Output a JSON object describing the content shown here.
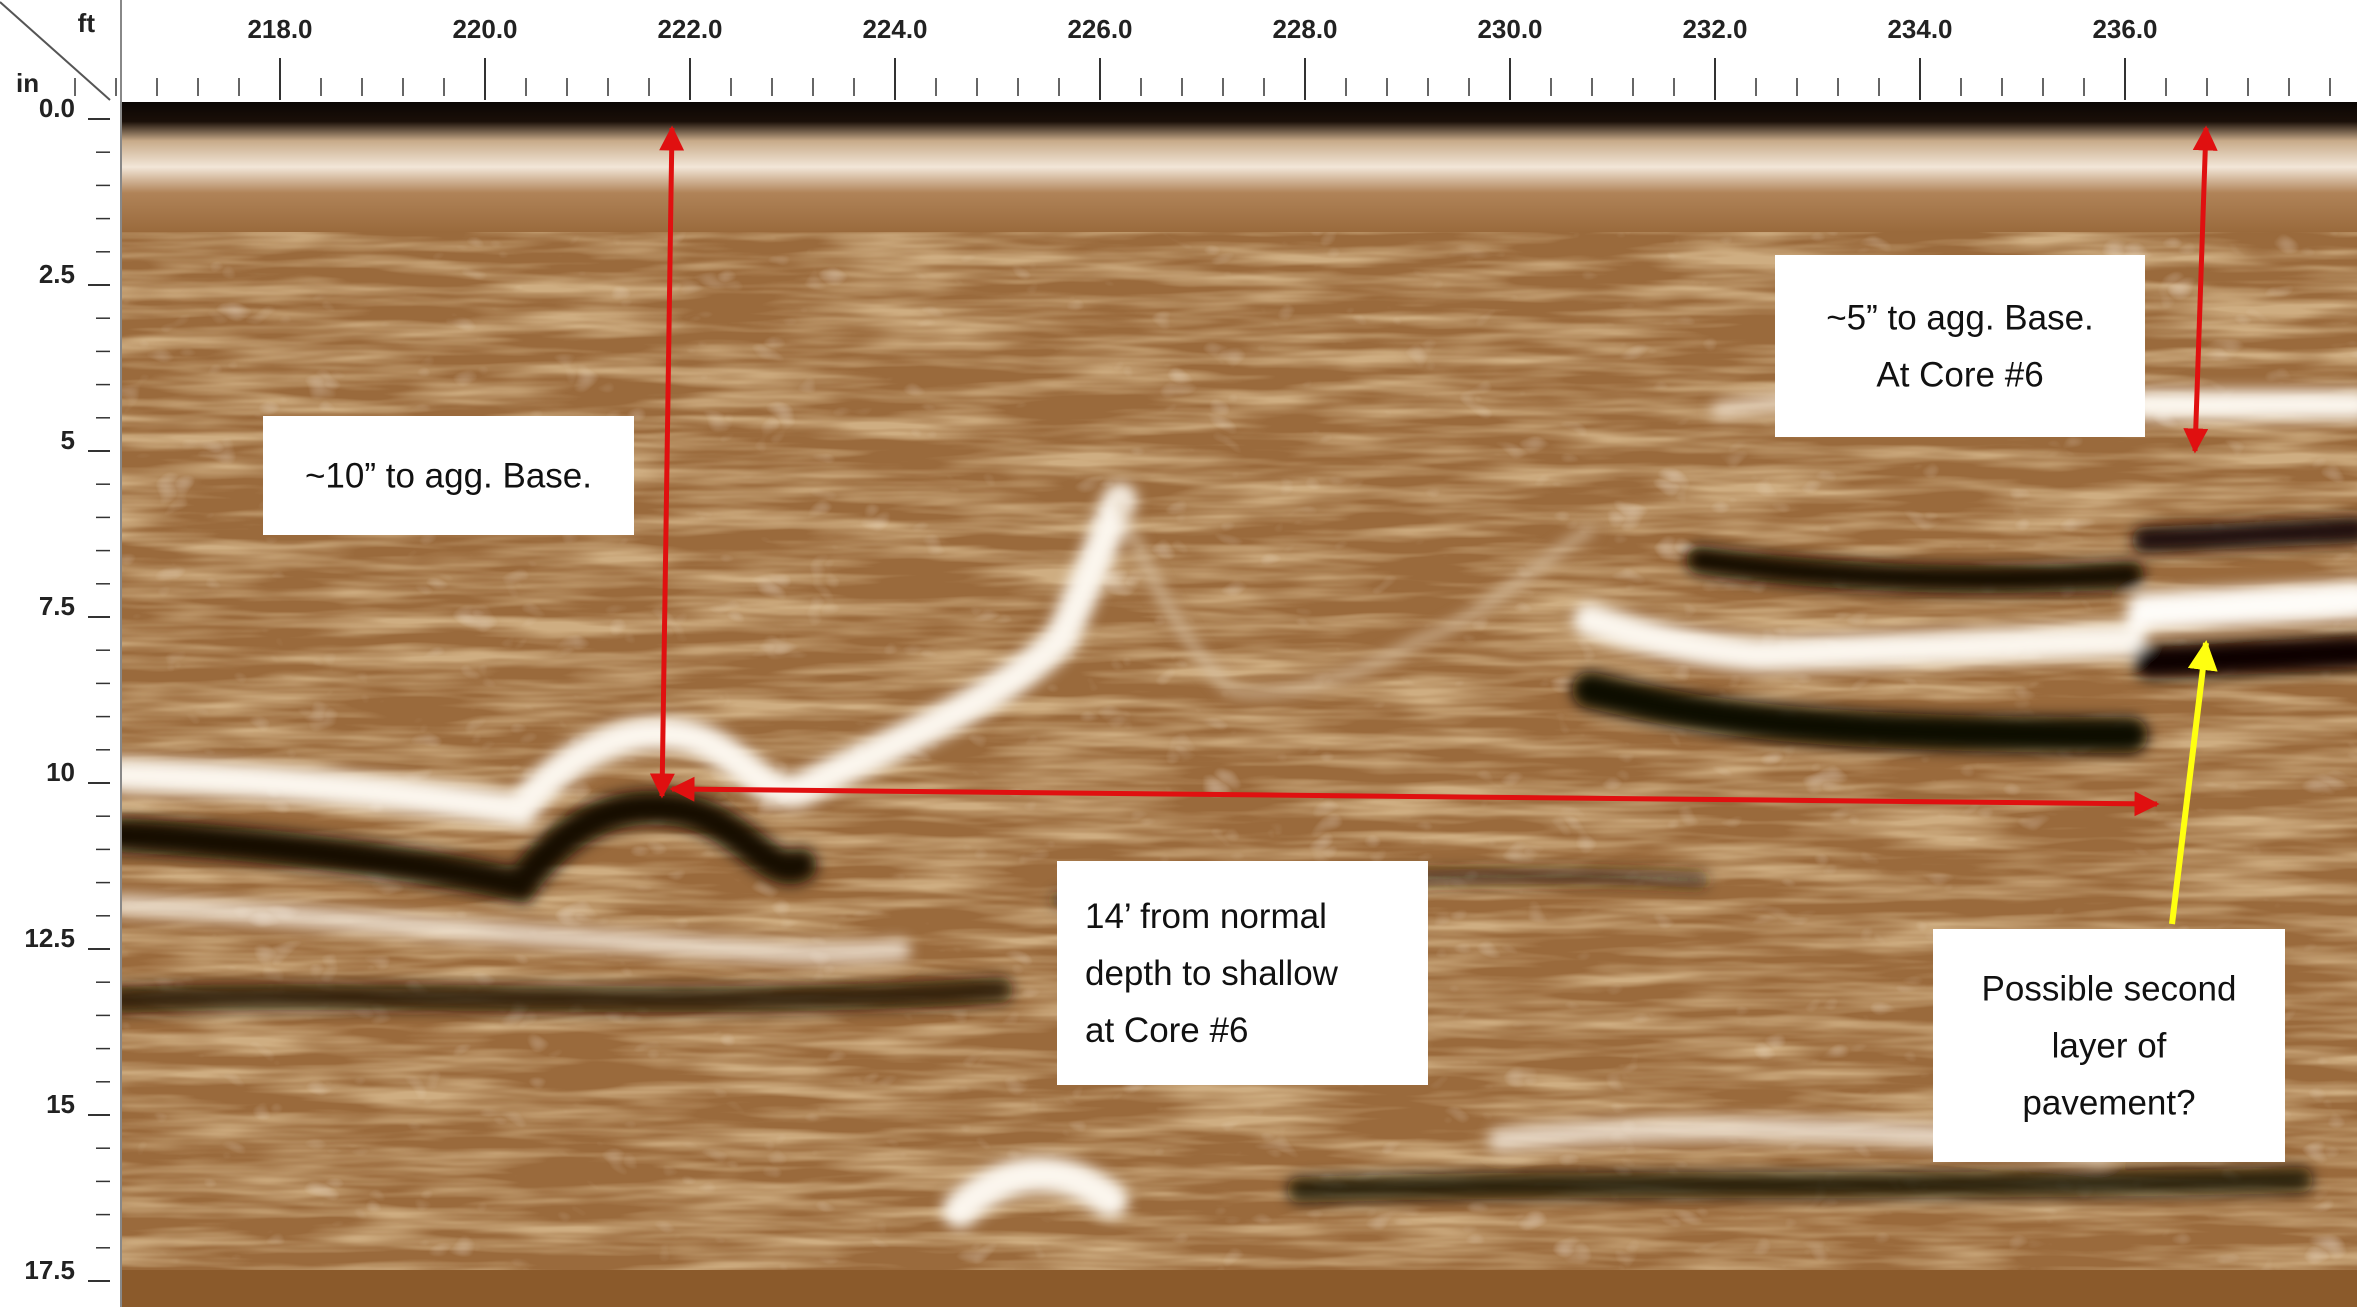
{
  "axes": {
    "x_unit": "ft",
    "y_unit": "in",
    "xticks": [
      {
        "value": 218,
        "label": "218.0"
      },
      {
        "value": 220,
        "label": "220.0"
      },
      {
        "value": 222,
        "label": "222.0"
      },
      {
        "value": 224,
        "label": "224.0"
      },
      {
        "value": 226,
        "label": "226.0"
      },
      {
        "value": 228,
        "label": "228.0"
      },
      {
        "value": 230,
        "label": "230.0"
      },
      {
        "value": 232,
        "label": "232.0"
      },
      {
        "value": 234,
        "label": "234.0"
      },
      {
        "value": 236,
        "label": "236.0"
      }
    ],
    "yticks": [
      {
        "value": 0,
        "label": "0.0"
      },
      2.5,
      5,
      7.5,
      10,
      12.5,
      15,
      17.5
    ]
  },
  "annotations": [
    {
      "lines": [
        "~10” to agg. Base."
      ]
    },
    {
      "lines": [
        "~5” to agg. Base.",
        "At Core #6"
      ]
    },
    {
      "lines": [
        "14’ from normal",
        "depth to shallow",
        "at Core #6"
      ]
    },
    {
      "lines": [
        "Possible second",
        "layer of",
        "pavement?"
      ]
    }
  ]
}
